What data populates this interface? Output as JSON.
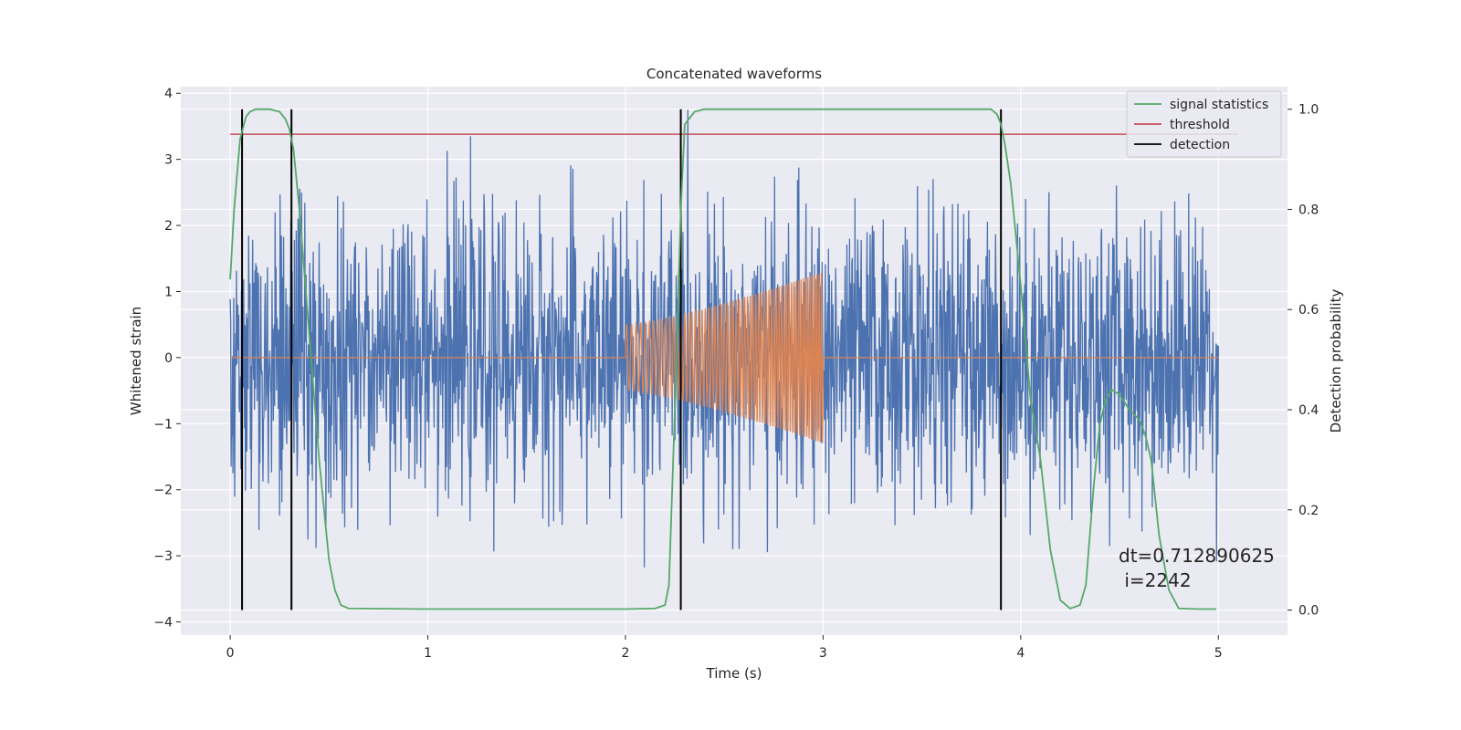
{
  "chart_data": {
    "type": "line",
    "title": "Concatenated waveforms",
    "xlabel": "Time (s)",
    "ylabel": "Whitened strain",
    "y2label": "Detection probability",
    "xlim": [
      -0.25,
      5.35
    ],
    "ylim": [
      -4.2,
      4.1
    ],
    "y2lim": [
      -0.05,
      1.045
    ],
    "xticks": [
      0,
      1,
      2,
      3,
      4,
      5
    ],
    "yticks": [
      -4,
      -3,
      -2,
      -1,
      0,
      1,
      2,
      3,
      4
    ],
    "y2ticks": [
      0.0,
      0.2,
      0.4,
      0.6,
      0.8,
      1.0
    ],
    "xtick_labels": [
      "0",
      "1",
      "2",
      "3",
      "4",
      "5"
    ],
    "ytick_labels": [
      "−4",
      "−3",
      "−2",
      "−1",
      "0",
      "1",
      "2",
      "3",
      "4"
    ],
    "y2tick_labels": [
      "0.0",
      "0.2",
      "0.4",
      "0.6",
      "0.8",
      "1.0"
    ],
    "grid": true,
    "legend_position": "top-right",
    "colors": {
      "background": "#eaeaf2",
      "grid": "#ffffff",
      "strain": "#4c72b0",
      "waveform": "#dd8452",
      "signal_statistics": "#55a868",
      "threshold": "#c44e52",
      "detection": "#000000"
    },
    "series": [
      {
        "name": "",
        "axis": "left",
        "description_kind": "noise",
        "x_range": [
          0,
          5
        ],
        "values_range": [
          -4.1,
          3.75
        ]
      },
      {
        "name": "",
        "axis": "left",
        "description_kind": "chirp",
        "x_range": [
          0,
          5
        ],
        "chirp_start": 2.0,
        "chirp_end": 3.0,
        "amplitude_start": 0.5,
        "amplitude_end": 1.3
      },
      {
        "name": "signal statistics",
        "axis": "right",
        "x": [
          0.0,
          0.02,
          0.05,
          0.08,
          0.1,
          0.13,
          0.16,
          0.2,
          0.25,
          0.28,
          0.3,
          0.32,
          0.35,
          0.4,
          0.45,
          0.5,
          0.53,
          0.56,
          0.6,
          1.0,
          1.5,
          2.0,
          2.15,
          2.2,
          2.22,
          2.25,
          2.28,
          2.3,
          2.35,
          2.4,
          3.0,
          3.5,
          3.85,
          3.88,
          3.9,
          3.92,
          3.95,
          4.0,
          4.05,
          4.1,
          4.15,
          4.2,
          4.25,
          4.3,
          4.33,
          4.37,
          4.4,
          4.43,
          4.46,
          4.5,
          4.55,
          4.6,
          4.63,
          4.66,
          4.7,
          4.75,
          4.8,
          4.9,
          4.99
        ],
        "values": [
          0.66,
          0.8,
          0.94,
          0.985,
          0.995,
          1.0,
          1.0,
          1.0,
          0.995,
          0.98,
          0.96,
          0.92,
          0.8,
          0.55,
          0.3,
          0.1,
          0.04,
          0.01,
          0.003,
          0.002,
          0.002,
          0.002,
          0.003,
          0.01,
          0.05,
          0.4,
          0.8,
          0.97,
          0.995,
          1.0,
          1.0,
          1.0,
          1.0,
          0.99,
          0.97,
          0.93,
          0.85,
          0.65,
          0.42,
          0.3,
          0.12,
          0.02,
          0.003,
          0.01,
          0.05,
          0.25,
          0.37,
          0.42,
          0.44,
          0.43,
          0.4,
          0.38,
          0.35,
          0.3,
          0.15,
          0.04,
          0.003,
          0.002,
          0.002
        ]
      },
      {
        "name": "threshold",
        "axis": "right",
        "x": [
          0,
          5.1
        ],
        "values": [
          0.95,
          0.95
        ]
      },
      {
        "name": "detection",
        "axis": "right",
        "type": "vlines",
        "x": [
          0.06,
          0.31,
          2.28,
          3.9
        ],
        "ymin": 0.0,
        "ymax": 1.0
      }
    ],
    "annotation": {
      "line1": "dt=0.712890625",
      "line2": " i=2242"
    }
  }
}
